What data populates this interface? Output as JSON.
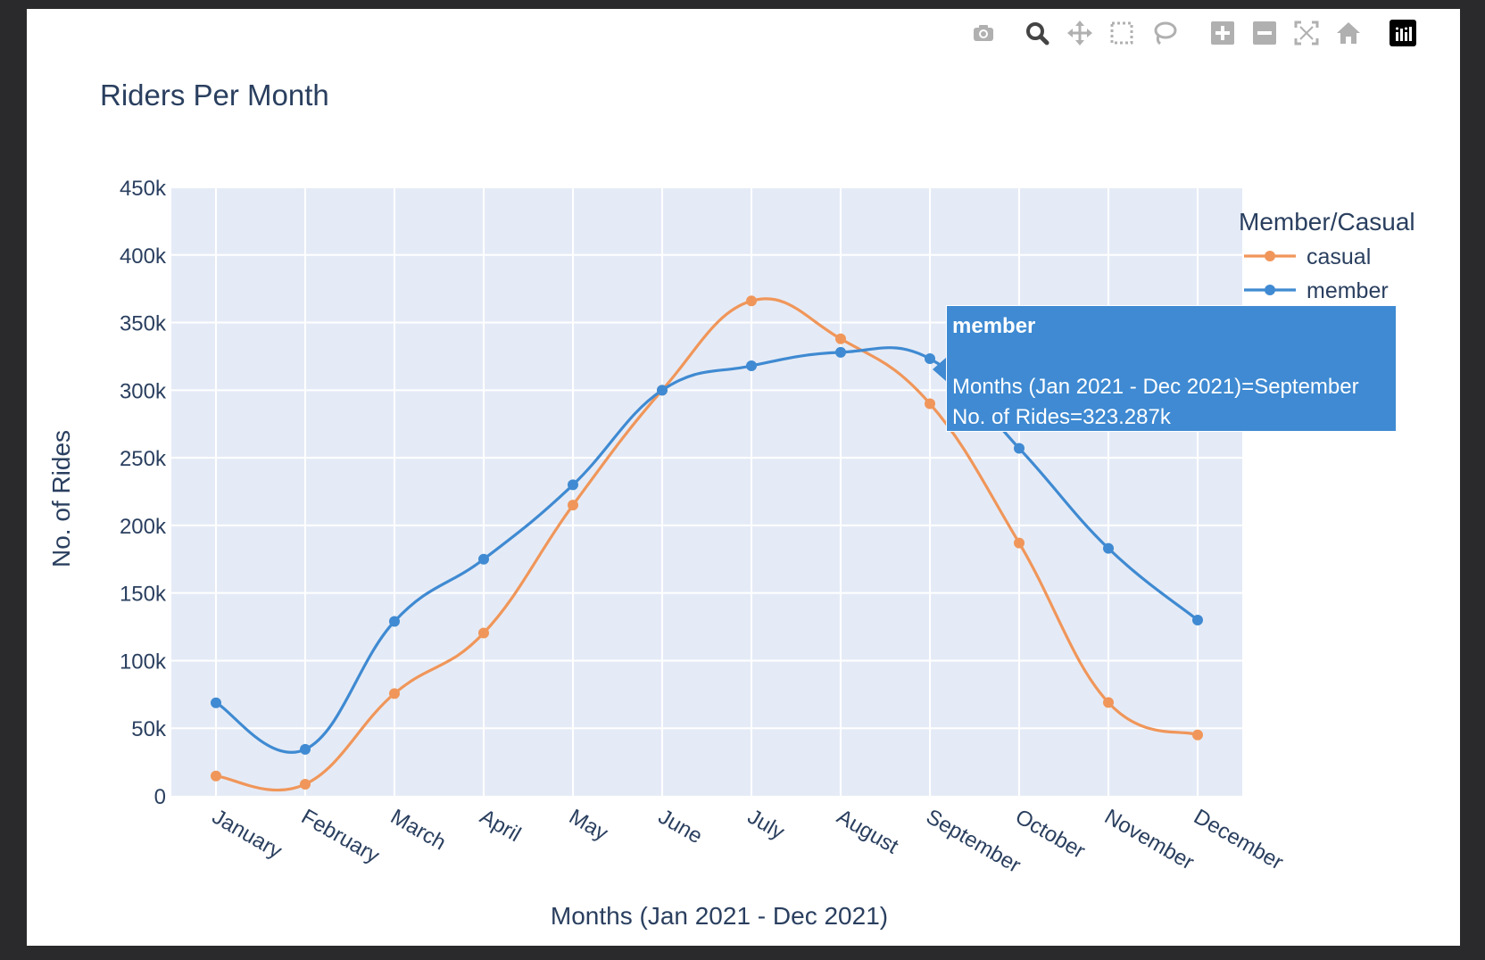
{
  "modebar": {
    "icons": [
      "camera-icon",
      "zoom-icon",
      "pan-icon",
      "box-select-icon",
      "lasso-select-icon",
      "zoom-in-icon",
      "zoom-out-icon",
      "autoscale-icon",
      "reset-axes-icon",
      "plotly-logo-icon"
    ]
  },
  "colors": {
    "casual": "#f0965a",
    "member": "#3f8ad2",
    "plot_bg": "#e5ebf6",
    "text": "#2a3f5f"
  },
  "chart_data": {
    "type": "line",
    "title": "Riders Per Month",
    "xlabel": "Months (Jan 2021 - Dec 2021)",
    "ylabel": "No. of Rides",
    "categories": [
      "January",
      "February",
      "March",
      "April",
      "May",
      "June",
      "July",
      "August",
      "September",
      "October",
      "November",
      "December"
    ],
    "ylim": [
      0,
      450000
    ],
    "yticks": [
      0,
      50000,
      100000,
      150000,
      200000,
      250000,
      300000,
      350000,
      400000,
      450000
    ],
    "ytick_labels": [
      "0",
      "50k",
      "100k",
      "150k",
      "200k",
      "250k",
      "300k",
      "350k",
      "400k",
      "450k"
    ],
    "grid": true,
    "legend": {
      "title": "Member/Casual",
      "placement": "top-right"
    },
    "series": [
      {
        "name": "casual",
        "values": [
          14690,
          8613,
          75660,
          120420,
          215000,
          300000,
          366000,
          338000,
          290000,
          187000,
          69000,
          45000
        ]
      },
      {
        "name": "member",
        "values": [
          68820,
          34380,
          129000,
          175000,
          230000,
          300000,
          318000,
          328000,
          323287,
          257000,
          183000,
          130000
        ]
      }
    ]
  },
  "tooltip": {
    "series": "member",
    "line1": "Months (Jan 2021 - Dec 2021)=September",
    "line2": "No. of Rides=323.287k"
  }
}
